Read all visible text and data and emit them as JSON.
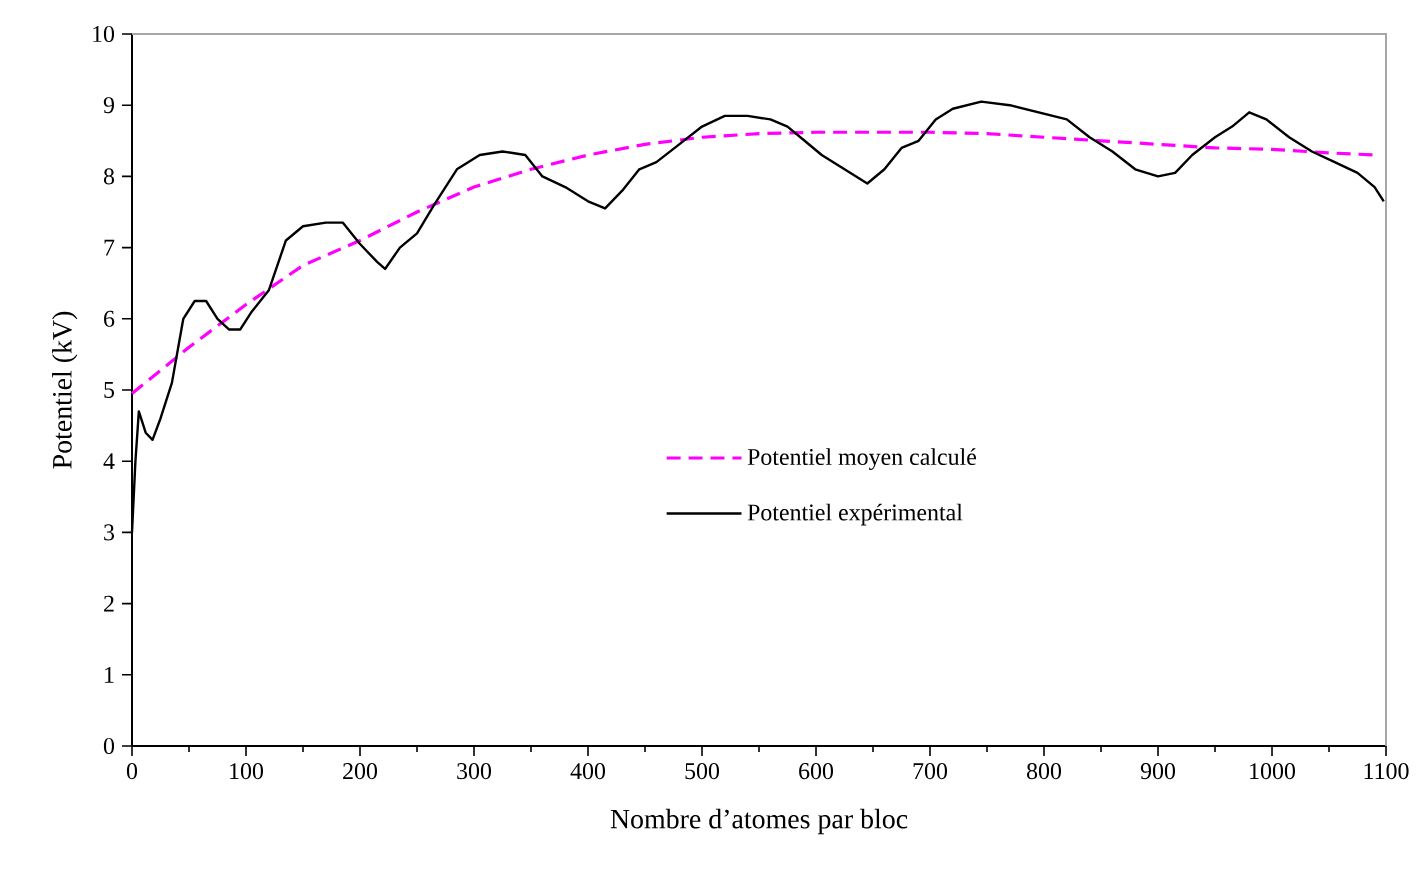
{
  "chart_data": {
    "type": "line",
    "xlabel": "Nombre d’atomes par bloc",
    "ylabel": "Potentiel (kV)",
    "xlim": [
      0,
      1100
    ],
    "xticks": [
      0,
      100,
      200,
      300,
      400,
      500,
      600,
      700,
      800,
      900,
      1000,
      1100
    ],
    "ylim": [
      0,
      10
    ],
    "yticks": [
      0,
      1,
      2,
      3,
      4,
      5,
      6,
      7,
      8,
      9,
      10
    ],
    "grid": false,
    "legend": "right",
    "marker": "none",
    "series": [
      {
        "name": "Potentiel moyen calculé",
        "color": "#ff00ff",
        "line_style": "dashed",
        "x": [
          0,
          50,
          100,
          150,
          200,
          250,
          300,
          350,
          400,
          450,
          500,
          550,
          600,
          650,
          700,
          750,
          800,
          850,
          900,
          950,
          1000,
          1050,
          1090
        ],
        "values": [
          4.95,
          5.6,
          6.2,
          6.75,
          7.1,
          7.5,
          7.85,
          8.1,
          8.3,
          8.45,
          8.55,
          8.6,
          8.62,
          8.62,
          8.62,
          8.6,
          8.55,
          8.5,
          8.45,
          8.4,
          8.38,
          8.33,
          8.3
        ]
      },
      {
        "name": "Potentiel expérimental",
        "color": "#000000",
        "line_style": "solid",
        "x": [
          0,
          3,
          6,
          12,
          18,
          25,
          35,
          45,
          55,
          65,
          75,
          85,
          95,
          105,
          120,
          135,
          150,
          170,
          185,
          200,
          215,
          222,
          235,
          250,
          265,
          285,
          305,
          325,
          345,
          360,
          380,
          400,
          415,
          430,
          445,
          460,
          480,
          500,
          520,
          540,
          560,
          575,
          590,
          605,
          625,
          645,
          660,
          675,
          690,
          705,
          720,
          745,
          770,
          795,
          820,
          840,
          860,
          880,
          900,
          915,
          930,
          950,
          965,
          980,
          995,
          1015,
          1035,
          1055,
          1075,
          1090,
          1098
        ],
        "values": [
          3.0,
          4.0,
          4.7,
          4.4,
          4.3,
          4.6,
          5.1,
          6.0,
          6.25,
          6.25,
          6.0,
          5.85,
          5.85,
          6.1,
          6.4,
          7.1,
          7.3,
          7.35,
          7.35,
          7.05,
          6.8,
          6.7,
          7.0,
          7.2,
          7.6,
          8.1,
          8.3,
          8.35,
          8.3,
          8.0,
          7.85,
          7.65,
          7.55,
          7.8,
          8.1,
          8.2,
          8.45,
          8.7,
          8.85,
          8.85,
          8.8,
          8.7,
          8.5,
          8.3,
          8.1,
          7.9,
          8.1,
          8.4,
          8.5,
          8.8,
          8.95,
          9.05,
          9.0,
          8.9,
          8.8,
          8.55,
          8.35,
          8.1,
          8.0,
          8.05,
          8.3,
          8.55,
          8.7,
          8.9,
          8.8,
          8.55,
          8.35,
          8.2,
          8.05,
          7.85,
          7.65
        ]
      }
    ]
  }
}
